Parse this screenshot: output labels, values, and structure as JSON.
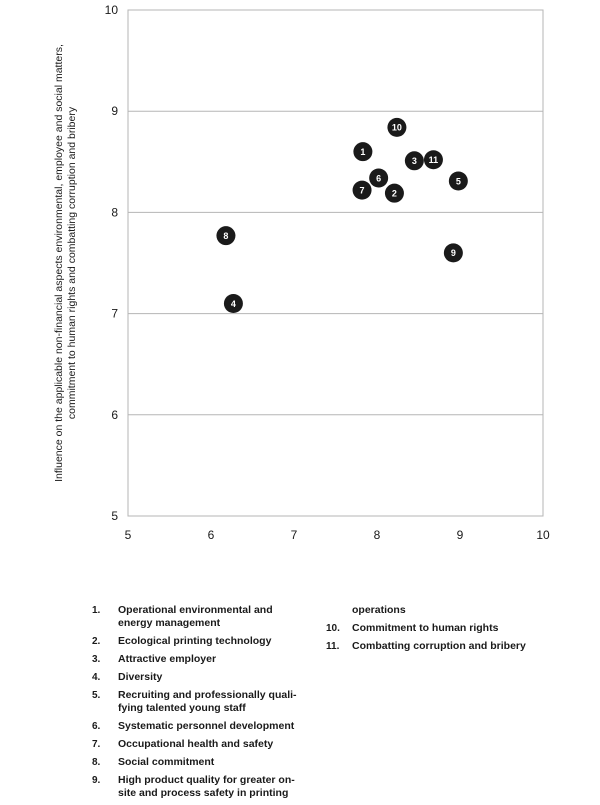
{
  "chart_data": {
    "type": "scatter",
    "title": "",
    "xlabel": "",
    "ylabel_lines": [
      "Influence on the applicable non-financial aspects environmental, employee and social matters,",
      "commitment to human rights and combatting corruption and bribery"
    ],
    "xlim": [
      5,
      10
    ],
    "ylim": [
      5,
      10
    ],
    "x_ticks": [
      "5",
      "6",
      "7",
      "8",
      "9",
      "10"
    ],
    "y_ticks": [
      "5",
      "6",
      "7",
      "8",
      "9",
      "10"
    ],
    "grid": "horizontal",
    "marker_color": "#1a1a1a",
    "points": [
      {
        "label": "1",
        "x": 7.83,
        "y": 8.6
      },
      {
        "label": "2",
        "x": 8.21,
        "y": 8.19
      },
      {
        "label": "3",
        "x": 8.45,
        "y": 8.51
      },
      {
        "label": "4",
        "x": 6.27,
        "y": 7.1
      },
      {
        "label": "5",
        "x": 8.98,
        "y": 8.31
      },
      {
        "label": "6",
        "x": 8.02,
        "y": 8.34
      },
      {
        "label": "7",
        "x": 7.82,
        "y": 8.22
      },
      {
        "label": "8",
        "x": 6.18,
        "y": 7.77
      },
      {
        "label": "9",
        "x": 8.92,
        "y": 7.6
      },
      {
        "label": "10",
        "x": 8.24,
        "y": 8.84
      },
      {
        "label": "11",
        "x": 8.68,
        "y": 8.52
      }
    ]
  },
  "legend": {
    "items": [
      {
        "num": "1.",
        "text": "Operational environmental and energy management"
      },
      {
        "num": "2.",
        "text": "Ecological printing technology"
      },
      {
        "num": "3.",
        "text": "Attractive employer"
      },
      {
        "num": "4.",
        "text": "Diversity"
      },
      {
        "num": "5.",
        "text": "Recruiting and professionally quali-fying talented young staff"
      },
      {
        "num": "6.",
        "text": "Systematic personnel development"
      },
      {
        "num": "7.",
        "text": "Occupational health and safety"
      },
      {
        "num": "8.",
        "text": "Social commitment"
      },
      {
        "num": "9.",
        "text": "High product quality for greater on-site and process safety in printing"
      }
    ],
    "item9_continuation": "operations",
    "items_col2": [
      {
        "num": "10.",
        "text": "Commitment to human rights"
      },
      {
        "num": "11.",
        "text": "Combatting corruption and bribery"
      }
    ]
  }
}
